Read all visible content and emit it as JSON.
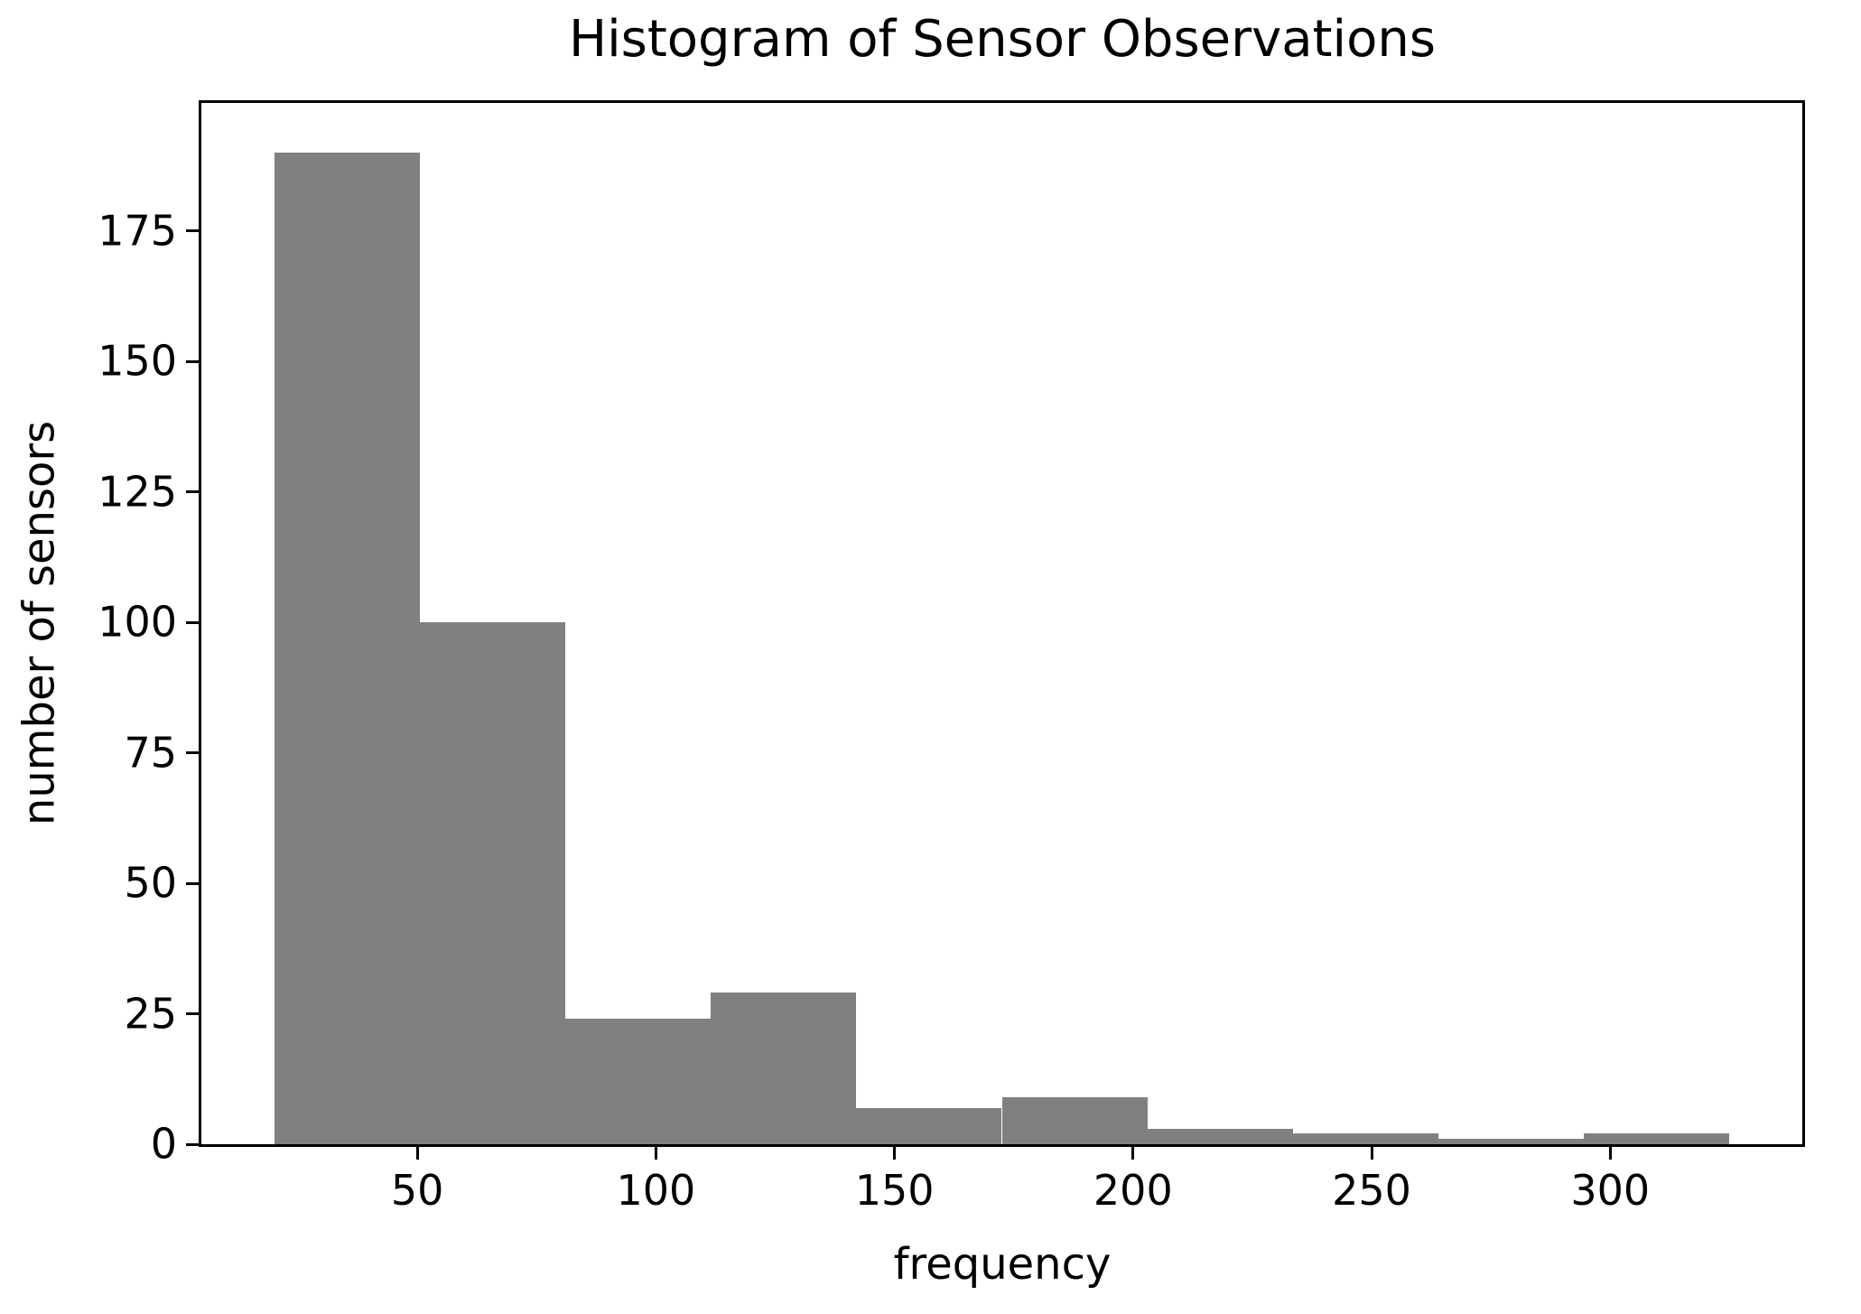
{
  "chart_data": {
    "type": "bar",
    "subtype": "histogram",
    "title": "Histogram of Sensor Observations",
    "xlabel": "frequency",
    "ylabel": "number of sensors",
    "bin_edges": [
      20,
      50.5,
      81,
      111.5,
      142,
      172.5,
      203,
      233.5,
      264,
      294.5,
      325
    ],
    "counts": [
      190,
      100,
      24,
      29,
      7,
      9,
      3,
      2,
      1,
      2
    ],
    "xticks": [
      50,
      100,
      150,
      200,
      250,
      300
    ],
    "yticks": [
      0,
      25,
      50,
      75,
      100,
      125,
      150,
      175
    ],
    "xlim": [
      4.75,
      340.25
    ],
    "ylim": [
      0,
      199.5
    ],
    "bar_color": "#808080",
    "axis_color": "#000000",
    "background_color": "#ffffff",
    "grid": false,
    "legend": null
  }
}
